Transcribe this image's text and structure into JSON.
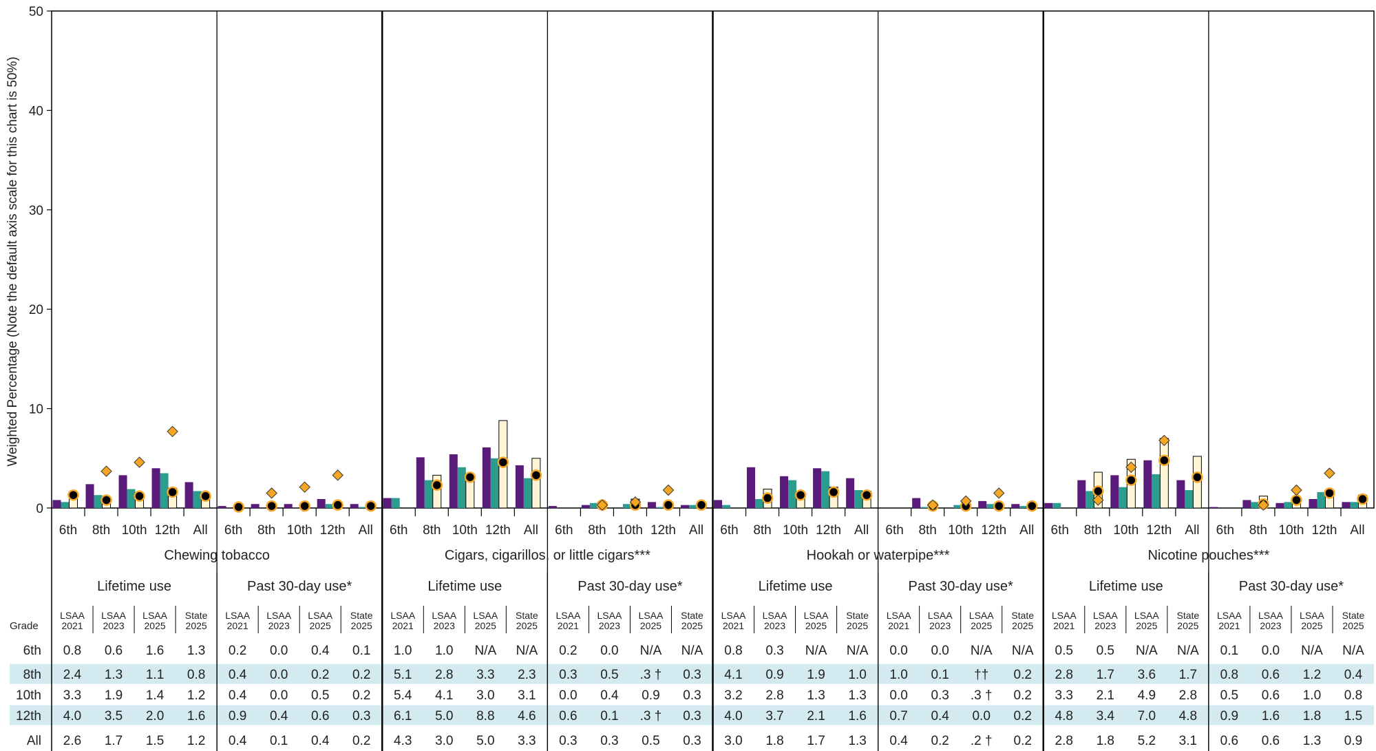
{
  "chart_data": {
    "type": "bar",
    "ylabel": "Weighted Percentage (Note the default axis scale for this chart is 50%)",
    "ylim": [
      0,
      50
    ],
    "yticks": [
      0,
      10,
      20,
      30,
      40,
      50
    ],
    "grades": [
      "6th",
      "8th",
      "10th",
      "12th",
      "All"
    ],
    "table_grade_header": "Grade",
    "table_rows": [
      "6th",
      "8th",
      "10th",
      "12th",
      "All"
    ],
    "series": [
      {
        "name": "LSAA 2021",
        "head": [
          "LSAA",
          "2021"
        ],
        "color": "#5a1a7a",
        "kind": "bar"
      },
      {
        "name": "LSAA 2023",
        "head": [
          "LSAA",
          "2023"
        ],
        "color": "#2a9d8f",
        "kind": "bar"
      },
      {
        "name": "LSAA 2025",
        "head": [
          "LSAA",
          "2025"
        ],
        "color": "#fff5d6",
        "kind": "bar"
      },
      {
        "name": "State 2025",
        "head": [
          "State",
          "2025"
        ],
        "color": "#000000",
        "kind": "point"
      }
    ],
    "marker_color": "#f5a623",
    "row_stripe_color": "#d3ebf0",
    "categories": [
      {
        "name": "Chewing tobacco",
        "panels": [
          {
            "label": "Lifetime use",
            "values": [
              [
                0.8,
                0.6,
                1.6,
                1.3
              ],
              [
                2.4,
                1.3,
                1.1,
                0.8
              ],
              [
                3.3,
                1.9,
                1.4,
                1.2
              ],
              [
                4.0,
                3.5,
                2.0,
                1.6
              ],
              [
                2.6,
                1.7,
                1.5,
                1.2
              ]
            ],
            "markers": [
              null,
              3.7,
              4.6,
              7.7,
              null
            ],
            "table": [
              [
                "0.8",
                "0.6",
                "1.6",
                "1.3"
              ],
              [
                "2.4",
                "1.3",
                "1.1",
                "0.8"
              ],
              [
                "3.3",
                "1.9",
                "1.4",
                "1.2"
              ],
              [
                "4.0",
                "3.5",
                "2.0",
                "1.6"
              ],
              [
                "2.6",
                "1.7",
                "1.5",
                "1.2"
              ]
            ]
          },
          {
            "label": "Past 30-day use*",
            "values": [
              [
                0.2,
                0.0,
                0.4,
                0.1
              ],
              [
                0.4,
                0.0,
                0.2,
                0.2
              ],
              [
                0.4,
                0.0,
                0.5,
                0.2
              ],
              [
                0.9,
                0.4,
                0.6,
                0.3
              ],
              [
                0.4,
                0.1,
                0.4,
                0.2
              ]
            ],
            "markers": [
              null,
              1.5,
              2.1,
              3.3,
              null
            ],
            "table": [
              [
                "0.2",
                "0.0",
                "0.4",
                "0.1"
              ],
              [
                "0.4",
                "0.0",
                "0.2",
                "0.2"
              ],
              [
                "0.4",
                "0.0",
                "0.5",
                "0.2"
              ],
              [
                "0.9",
                "0.4",
                "0.6",
                "0.3"
              ],
              [
                "0.4",
                "0.1",
                "0.4",
                "0.2"
              ]
            ]
          }
        ]
      },
      {
        "name": "Cigars, cigarillos, or little cigars***",
        "panels": [
          {
            "label": "Lifetime use",
            "values": [
              [
                1.0,
                1.0,
                null,
                null
              ],
              [
                5.1,
                2.8,
                3.3,
                2.3
              ],
              [
                5.4,
                4.1,
                3.0,
                3.1
              ],
              [
                6.1,
                5.0,
                8.8,
                4.6
              ],
              [
                4.3,
                3.0,
                5.0,
                3.3
              ]
            ],
            "markers": [
              null,
              null,
              null,
              null,
              null
            ],
            "table": [
              [
                "1.0",
                "1.0",
                "N/A",
                "N/A"
              ],
              [
                "5.1",
                "2.8",
                "3.3",
                "2.3"
              ],
              [
                "5.4",
                "4.1",
                "3.0",
                "3.1"
              ],
              [
                "6.1",
                "5.0",
                "8.8",
                "4.6"
              ],
              [
                "4.3",
                "3.0",
                "5.0",
                "3.3"
              ]
            ]
          },
          {
            "label": "Past 30-day use*",
            "values": [
              [
                0.2,
                0.0,
                null,
                null
              ],
              [
                0.3,
                0.5,
                0.3,
                0.3
              ],
              [
                0.0,
                0.4,
                0.9,
                0.3
              ],
              [
                0.6,
                0.1,
                0.3,
                0.3
              ],
              [
                0.3,
                0.3,
                0.5,
                0.3
              ]
            ],
            "markers": [
              null,
              0.3,
              0.6,
              1.8,
              null
            ],
            "table": [
              [
                "0.2",
                "0.0",
                "N/A",
                "N/A"
              ],
              [
                "0.3",
                "0.5",
                ".3 †",
                "0.3"
              ],
              [
                "0.0",
                "0.4",
                "0.9",
                "0.3"
              ],
              [
                "0.6",
                "0.1",
                ".3 †",
                "0.3"
              ],
              [
                "0.3",
                "0.3",
                "0.5",
                "0.3"
              ]
            ]
          }
        ]
      },
      {
        "name": "Hookah or waterpipe***",
        "panels": [
          {
            "label": "Lifetime use",
            "values": [
              [
                0.8,
                0.3,
                null,
                null
              ],
              [
                4.1,
                0.9,
                1.9,
                1.0
              ],
              [
                3.2,
                2.8,
                1.3,
                1.3
              ],
              [
                4.0,
                3.7,
                2.1,
                1.6
              ],
              [
                3.0,
                1.8,
                1.7,
                1.3
              ]
            ],
            "markers": [
              null,
              null,
              null,
              null,
              null
            ],
            "table": [
              [
                "0.8",
                "0.3",
                "N/A",
                "N/A"
              ],
              [
                "4.1",
                "0.9",
                "1.9",
                "1.0"
              ],
              [
                "3.2",
                "2.8",
                "1.3",
                "1.3"
              ],
              [
                "4.0",
                "3.7",
                "2.1",
                "1.6"
              ],
              [
                "3.0",
                "1.8",
                "1.7",
                "1.3"
              ]
            ]
          },
          {
            "label": "Past 30-day use*",
            "values": [
              [
                0.0,
                0.0,
                null,
                null
              ],
              [
                1.0,
                0.1,
                null,
                0.2
              ],
              [
                0.0,
                0.3,
                0.3,
                0.2
              ],
              [
                0.7,
                0.4,
                0.0,
                0.2
              ],
              [
                0.4,
                0.2,
                0.2,
                0.2
              ]
            ],
            "markers": [
              null,
              0.3,
              0.7,
              1.5,
              null
            ],
            "table": [
              [
                "0.0",
                "0.0",
                "N/A",
                "N/A"
              ],
              [
                "1.0",
                "0.1",
                "††",
                "0.2"
              ],
              [
                "0.0",
                "0.3",
                ".3 †",
                "0.2"
              ],
              [
                "0.7",
                "0.4",
                "0.0",
                "0.2"
              ],
              [
                "0.4",
                "0.2",
                ".2 †",
                "0.2"
              ]
            ]
          }
        ]
      },
      {
        "name": "Nicotine pouches***",
        "panels": [
          {
            "label": "Lifetime use",
            "values": [
              [
                0.5,
                0.5,
                null,
                null
              ],
              [
                2.8,
                1.7,
                3.6,
                1.7
              ],
              [
                3.3,
                2.1,
                4.9,
                2.8
              ],
              [
                4.8,
                3.4,
                7.0,
                4.8
              ],
              [
                2.8,
                1.8,
                5.2,
                3.1
              ]
            ],
            "markers": [
              null,
              0.8,
              4.1,
              6.8,
              null
            ],
            "table": [
              [
                "0.5",
                "0.5",
                "N/A",
                "N/A"
              ],
              [
                "2.8",
                "1.7",
                "3.6",
                "1.7"
              ],
              [
                "3.3",
                "2.1",
                "4.9",
                "2.8"
              ],
              [
                "4.8",
                "3.4",
                "7.0",
                "4.8"
              ],
              [
                "2.8",
                "1.8",
                "5.2",
                "3.1"
              ]
            ]
          },
          {
            "label": "Past 30-day use*",
            "values": [
              [
                0.1,
                0.0,
                null,
                null
              ],
              [
                0.8,
                0.6,
                1.2,
                0.4
              ],
              [
                0.5,
                0.6,
                1.0,
                0.8
              ],
              [
                0.9,
                1.6,
                1.8,
                1.5
              ],
              [
                0.6,
                0.6,
                1.3,
                0.9
              ]
            ],
            "markers": [
              null,
              0.3,
              1.8,
              3.5,
              null
            ],
            "table": [
              [
                "0.1",
                "0.0",
                "N/A",
                "N/A"
              ],
              [
                "0.8",
                "0.6",
                "1.2",
                "0.4"
              ],
              [
                "0.5",
                "0.6",
                "1.0",
                "0.8"
              ],
              [
                "0.9",
                "1.6",
                "1.8",
                "1.5"
              ],
              [
                "0.6",
                "0.6",
                "1.3",
                "0.9"
              ]
            ]
          }
        ]
      }
    ]
  }
}
